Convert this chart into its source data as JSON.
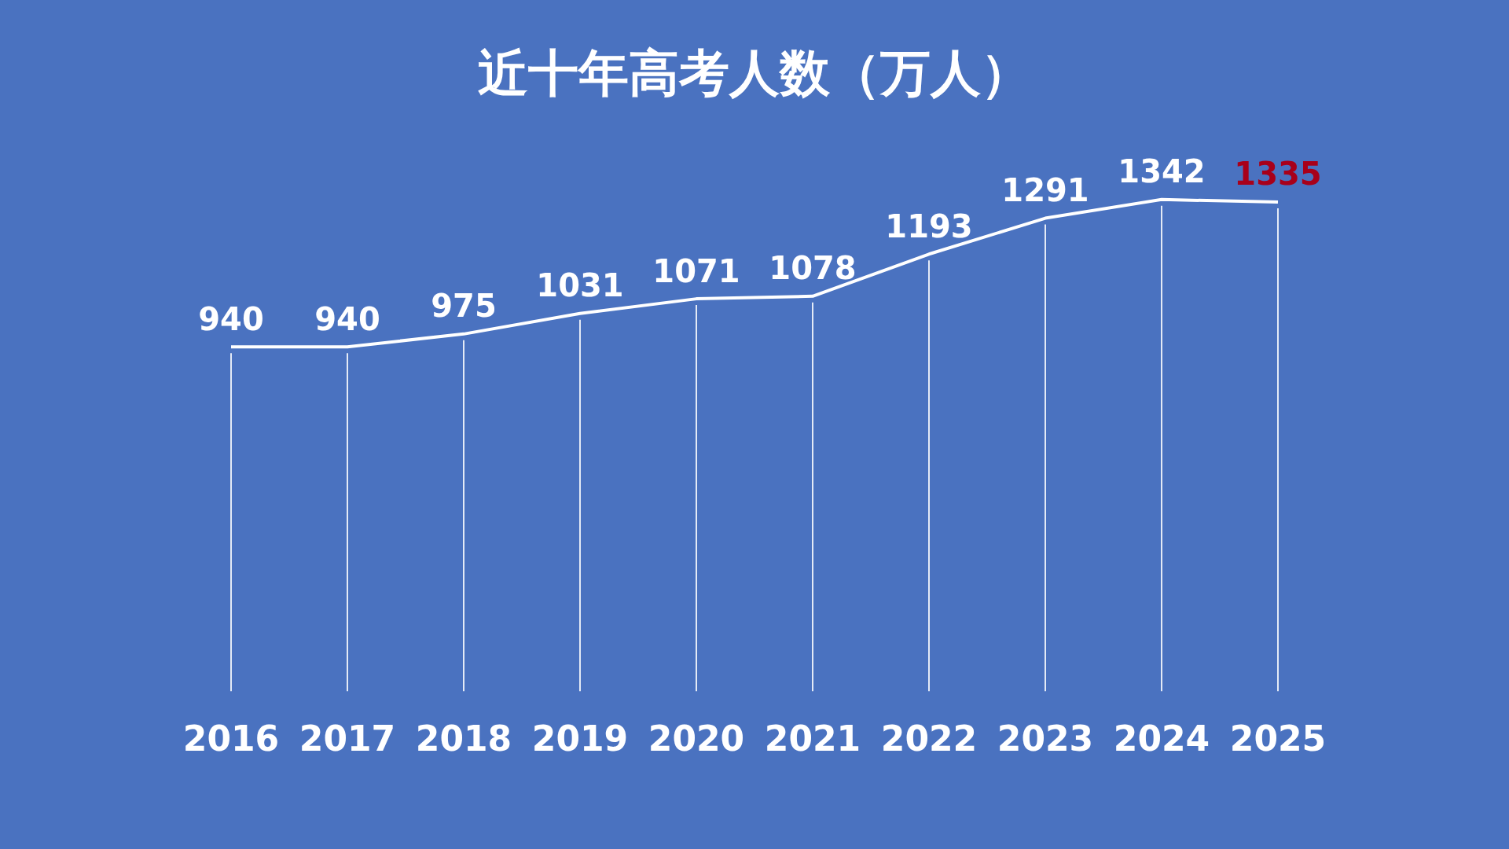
{
  "chart_data": {
    "type": "line",
    "title": "近十年高考人数（万人）",
    "categories": [
      "2016",
      "2017",
      "2018",
      "2019",
      "2020",
      "2021",
      "2022",
      "2023",
      "2024",
      "2025"
    ],
    "series": [
      {
        "color": "#ffffff",
        "colors": [
          "#ffffff",
          "#ffffff",
          "#ffffff",
          "#ffffff",
          "#ffffff",
          "#ffffff",
          "#ffffff",
          "#ffffff",
          "#ffffff",
          "#a8001a"
        ],
        "values": [
          940,
          940,
          975,
          1031,
          1071,
          1078,
          1193,
          1291,
          1342,
          1335
        ]
      }
    ],
    "data_labels": true,
    "grid": "x",
    "legend": false,
    "tick_labels": "x"
  }
}
